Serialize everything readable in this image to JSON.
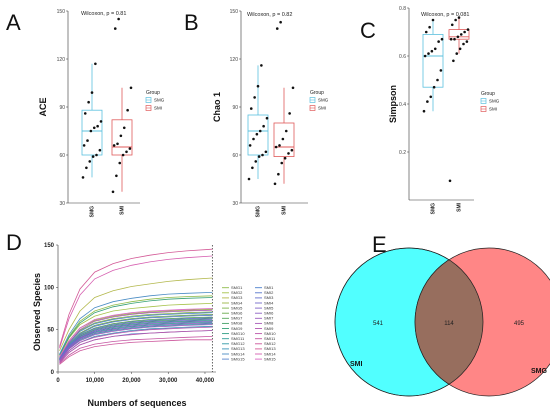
{
  "chart_data": [
    {
      "type": "box",
      "panel_label": "A",
      "ylabel": "ACE",
      "stat_label": "Wilcoxon, p = 0.81",
      "ylim": [
        30,
        150
      ],
      "yticks": [
        30,
        60,
        90,
        120,
        150
      ],
      "categories": [
        "SMG",
        "SMI"
      ],
      "boxes": [
        {
          "name": "SMG",
          "q1": 60,
          "median": 75,
          "q3": 88,
          "whisker_low": 46,
          "whisker_high": 117,
          "points": [
            46,
            52,
            56,
            59,
            60,
            63,
            66,
            69,
            75,
            77,
            78,
            81,
            86,
            93,
            99,
            117
          ]
        },
        {
          "name": "SMI",
          "q1": 60,
          "median": 65,
          "q3": 82,
          "whisker_low": 37,
          "whisker_high": 102,
          "points": [
            37,
            47,
            55,
            60,
            62,
            64,
            66,
            67,
            72,
            77,
            88,
            102,
            139,
            145
          ]
        }
      ],
      "colors": {
        "SMG": "#5bc0de",
        "SMI": "#e05a5a"
      },
      "legend": {
        "title": "Group",
        "entries": [
          "SMG",
          "SMI"
        ]
      }
    },
    {
      "type": "box",
      "panel_label": "B",
      "ylabel": "Chao 1",
      "stat_label": "Wilcoxon, p = 0.82",
      "ylim": [
        30,
        150
      ],
      "yticks": [
        30,
        60,
        90,
        120,
        150
      ],
      "categories": [
        "SMG",
        "SMI"
      ],
      "boxes": [
        {
          "name": "SMG",
          "q1": 60,
          "median": 75,
          "q3": 85,
          "whisker_low": 45,
          "whisker_high": 116,
          "points": [
            45,
            52,
            56,
            59,
            60,
            62,
            66,
            70,
            73,
            75,
            78,
            83,
            89,
            96,
            103,
            116
          ]
        },
        {
          "name": "SMI",
          "q1": 59,
          "median": 65,
          "q3": 80,
          "whisker_low": 42,
          "whisker_high": 102,
          "points": [
            42,
            48,
            55,
            58,
            61,
            63,
            65,
            66,
            70,
            75,
            86,
            102,
            139,
            143
          ]
        }
      ],
      "colors": {
        "SMG": "#5bc0de",
        "SMI": "#e05a5a"
      },
      "legend": {
        "title": "Group",
        "entries": [
          "SMG",
          "SMI"
        ]
      }
    },
    {
      "type": "box",
      "panel_label": "C",
      "ylabel": "Simpson",
      "stat_label": "Wilcoxon, p = 0.081",
      "ylim": [
        0,
        0.8
      ],
      "yticks": [
        0.2,
        0.4,
        0.6,
        0.8
      ],
      "categories": [
        "SMG",
        "SMI"
      ],
      "boxes": [
        {
          "name": "SMG",
          "q1": 0.47,
          "median": 0.6,
          "q3": 0.69,
          "whisker_low": 0.37,
          "whisker_high": 0.75,
          "points": [
            0.37,
            0.41,
            0.43,
            0.47,
            0.5,
            0.54,
            0.6,
            0.61,
            0.62,
            0.63,
            0.66,
            0.67,
            0.7,
            0.72,
            0.75
          ]
        },
        {
          "name": "SMI",
          "q1": 0.67,
          "median": 0.68,
          "q3": 0.71,
          "whisker_low": 0.61,
          "whisker_high": 0.76,
          "points": [
            0.08,
            0.58,
            0.61,
            0.63,
            0.65,
            0.66,
            0.67,
            0.67,
            0.68,
            0.69,
            0.7,
            0.71,
            0.73,
            0.75,
            0.76
          ]
        }
      ],
      "colors": {
        "SMG": "#5bc0de",
        "SMI": "#e05a5a"
      },
      "legend": {
        "title": "Group",
        "entries": [
          "SMG",
          "SMI"
        ]
      }
    },
    {
      "type": "line",
      "panel_label": "D",
      "xlabel": "Numbers of sequences",
      "ylabel": "Observed Species",
      "xlim": [
        0,
        43000
      ],
      "ylim": [
        0,
        150
      ],
      "xticks": [
        0,
        10000,
        20000,
        30000,
        40000
      ],
      "xtick_labels": [
        "0",
        "10,000",
        "20,000",
        "30,000",
        "40,000"
      ],
      "yticks": [
        0,
        50,
        100,
        150
      ],
      "cutoff_x": 42000,
      "x": [
        400,
        3000,
        6000,
        10000,
        15000,
        20000,
        25000,
        30000,
        35000,
        42000
      ],
      "series": [
        {
          "name": "SMG1",
          "color": "#8fbc4a",
          "values": [
            20,
            42,
            60,
            72,
            79,
            83,
            86,
            88,
            89,
            90
          ]
        },
        {
          "name": "SMG2",
          "color": "#a6c24a",
          "values": [
            19,
            40,
            56,
            66,
            72,
            75,
            77,
            79,
            80,
            81
          ]
        },
        {
          "name": "SMG3",
          "color": "#b3b84c",
          "values": [
            25,
            50,
            72,
            88,
            96,
            101,
            104,
            107,
            109,
            111
          ]
        },
        {
          "name": "SMG4",
          "color": "#9ab646",
          "values": [
            18,
            37,
            52,
            61,
            66,
            69,
            71,
            72,
            73,
            74
          ]
        },
        {
          "name": "SMG5",
          "color": "#7fb24b",
          "values": [
            17,
            35,
            49,
            58,
            63,
            66,
            68,
            69,
            70,
            71
          ]
        },
        {
          "name": "SMG6",
          "color": "#6aaa4f",
          "values": [
            16,
            33,
            46,
            55,
            60,
            63,
            65,
            66,
            67,
            68
          ]
        },
        {
          "name": "SMG7",
          "color": "#55a55a",
          "values": [
            16,
            32,
            44,
            52,
            57,
            60,
            62,
            63,
            64,
            65
          ]
        },
        {
          "name": "SMG8",
          "color": "#43a066",
          "values": [
            15,
            31,
            42,
            50,
            55,
            58,
            60,
            61,
            62,
            63
          ]
        },
        {
          "name": "SMG9",
          "color": "#35a075",
          "values": [
            20,
            41,
            58,
            70,
            77,
            81,
            84,
            86,
            87,
            88
          ]
        },
        {
          "name": "SMG10",
          "color": "#2f9e84",
          "values": [
            15,
            30,
            41,
            48,
            53,
            56,
            58,
            59,
            60,
            61
          ]
        },
        {
          "name": "SMG11",
          "color": "#2d9b95",
          "values": [
            14,
            29,
            40,
            47,
            51,
            54,
            56,
            57,
            58,
            59
          ]
        },
        {
          "name": "SMG12",
          "color": "#3199a6",
          "values": [
            14,
            28,
            38,
            45,
            49,
            52,
            54,
            55,
            56,
            57
          ]
        },
        {
          "name": "SMG13",
          "color": "#3a92b6",
          "values": [
            12,
            25,
            35,
            42,
            46,
            49,
            51,
            52,
            53,
            54
          ]
        },
        {
          "name": "SMG14",
          "color": "#4a8cc4",
          "values": [
            21,
            44,
            63,
            76,
            83,
            87,
            90,
            92,
            93,
            94
          ]
        },
        {
          "name": "SMG15",
          "color": "#5a86cc",
          "values": [
            11,
            23,
            32,
            38,
            42,
            45,
            46,
            47,
            48,
            49
          ]
        },
        {
          "name": "SMI1",
          "color": "#4a7fcc",
          "values": [
            16,
            34,
            48,
            57,
            62,
            65,
            67,
            68,
            69,
            70
          ]
        },
        {
          "name": "SMI2",
          "color": "#5677cc",
          "values": [
            15,
            32,
            45,
            54,
            59,
            62,
            64,
            65,
            66,
            67
          ]
        },
        {
          "name": "SMI3",
          "color": "#6470cc",
          "values": [
            15,
            31,
            43,
            51,
            56,
            59,
            61,
            62,
            63,
            64
          ]
        },
        {
          "name": "SMI4",
          "color": "#7269ca",
          "values": [
            14,
            30,
            41,
            49,
            54,
            57,
            59,
            60,
            61,
            62
          ]
        },
        {
          "name": "SMI5",
          "color": "#8064c6",
          "values": [
            14,
            29,
            40,
            48,
            52,
            55,
            57,
            58,
            59,
            60
          ]
        },
        {
          "name": "SMI6",
          "color": "#8d60c2",
          "values": [
            13,
            28,
            39,
            46,
            50,
            53,
            55,
            56,
            57,
            58
          ]
        },
        {
          "name": "SMI7",
          "color": "#9a5cbd",
          "values": [
            13,
            27,
            37,
            44,
            48,
            51,
            53,
            54,
            55,
            56
          ]
        },
        {
          "name": "SMI8",
          "color": "#a659b6",
          "values": [
            17,
            35,
            50,
            60,
            65,
            68,
            70,
            71,
            72,
            73
          ]
        },
        {
          "name": "SMI9",
          "color": "#b156b0",
          "values": [
            12,
            25,
            35,
            41,
            45,
            48,
            50,
            51,
            52,
            53
          ]
        },
        {
          "name": "SMI10",
          "color": "#bb55a9",
          "values": [
            11,
            23,
            32,
            38,
            42,
            44,
            46,
            47,
            48,
            49
          ]
        },
        {
          "name": "SMI11",
          "color": "#c455a2",
          "values": [
            10,
            20,
            28,
            33,
            36,
            38,
            39,
            40,
            41,
            42
          ]
        },
        {
          "name": "SMI12",
          "color": "#cc569c",
          "values": [
            9,
            18,
            25,
            30,
            33,
            35,
            36,
            37,
            38,
            38
          ]
        },
        {
          "name": "SMI13",
          "color": "#d35996",
          "values": [
            30,
            68,
            98,
            118,
            128,
            134,
            138,
            141,
            143,
            145
          ]
        },
        {
          "name": "SMI14",
          "color": "#d65fb0",
          "values": [
            28,
            63,
            91,
            110,
            120,
            126,
            130,
            133,
            135,
            137
          ]
        },
        {
          "name": "SMI15",
          "color": "#d968c4",
          "values": [
            18,
            37,
            52,
            62,
            67,
            70,
            72,
            73,
            74,
            75
          ]
        }
      ]
    },
    {
      "type": "venn",
      "panel_label": "E",
      "sets": [
        {
          "name": "SMI",
          "color": "#33ffff"
        },
        {
          "name": "SMG",
          "color": "#ff6b6b"
        }
      ],
      "only_left": 541,
      "overlap": 114,
      "only_right": 495
    }
  ]
}
